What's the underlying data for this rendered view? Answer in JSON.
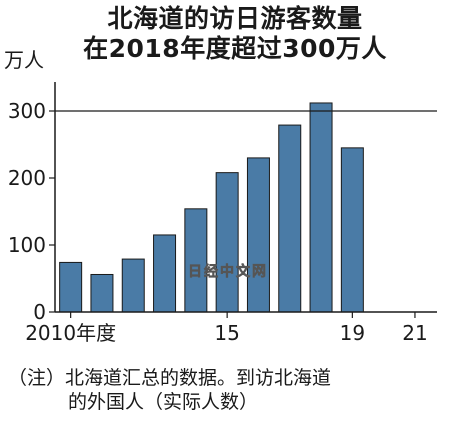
{
  "header": {
    "title_line1": "北海道的访日游客数量",
    "title_line2": "在2018年度超过300万人"
  },
  "watermark": {
    "text": "日经中文网"
  },
  "note": {
    "line1": "（注）北海道汇总的数据。到访北海道",
    "line2": "的外国人（实际人数）"
  },
  "colors": {
    "bar": "#4a7ba6",
    "bar_outline": "#1a1a1a",
    "axis": "#1a1a1a",
    "reference_line": "#1a1a1a",
    "text": "#1a1a1a"
  },
  "chart_data": {
    "type": "bar",
    "title": "北海道的访日游客数量 在2018年度超过300万人",
    "ylabel": "万人",
    "xlabel": "",
    "categories": [
      "2010",
      "2011",
      "2012",
      "2013",
      "2014",
      "2015",
      "2016",
      "2017",
      "2018",
      "2019"
    ],
    "values": [
      74,
      56,
      79,
      115,
      154,
      208,
      230,
      279,
      312,
      245
    ],
    "ylim": [
      0,
      300
    ],
    "xlim": [
      2010,
      2021
    ],
    "yticks": [
      {
        "value": 0,
        "label": "0"
      },
      {
        "value": 100,
        "label": "100"
      },
      {
        "value": 200,
        "label": "200"
      },
      {
        "value": 300,
        "label": "300"
      }
    ],
    "xticks": [
      {
        "value": 2010,
        "label": "2010年度"
      },
      {
        "value": 2015,
        "label": "15"
      },
      {
        "value": 2019,
        "label": "19"
      },
      {
        "value": 2021,
        "label": "21"
      }
    ],
    "reference_line": 300,
    "grid": false
  }
}
